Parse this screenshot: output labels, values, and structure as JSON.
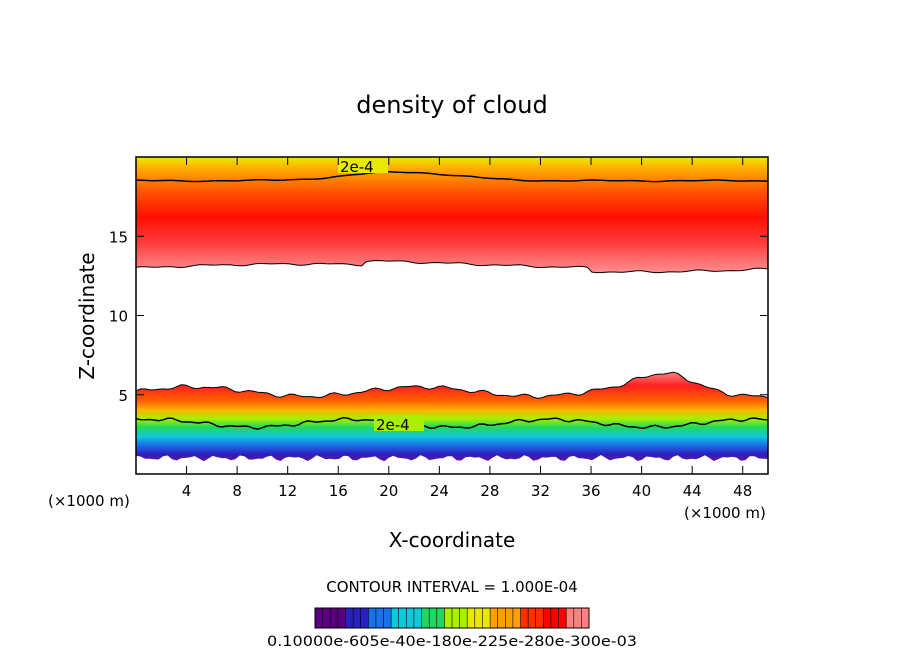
{
  "chart_data": {
    "type": "heatmap",
    "title": "density of cloud",
    "xlabel": "X-coordinate",
    "ylabel": "Z-coordinate",
    "x_units": "(×1000 m)",
    "y_units": "(×1000 m)",
    "xlim": [
      0,
      50
    ],
    "ylim": [
      0,
      20
    ],
    "x_ticks": [
      "4",
      "8",
      "12",
      "16",
      "20",
      "24",
      "28",
      "32",
      "36",
      "40",
      "44",
      "48"
    ],
    "x_tick_values": [
      4,
      8,
      12,
      16,
      20,
      24,
      28,
      32,
      36,
      40,
      44,
      48
    ],
    "y_ticks": [
      "5",
      "10",
      "15"
    ],
    "y_tick_values": [
      5,
      10,
      15
    ],
    "contour_label": "2e-4",
    "contour_label_value": 0.0002,
    "contour_interval_text": "CONTOUR INTERVAL = 1.000E-04",
    "contour_interval": 0.0001,
    "colorbar_labels_text": "0.10000e-605e-40e-180e-225e-280e-300e-03",
    "upper_layer": {
      "z_bottom": 13.2,
      "z_peak": 15.0,
      "z_contour": 18.5,
      "z_top": 20.0
    },
    "lower_layer": {
      "z_bottom": 1.0,
      "z_peak": 4.6,
      "z_contour": 3.2,
      "z_top": 5.2
    },
    "colors": [
      "#5a0080",
      "#2a20c0",
      "#1a70e8",
      "#10c8d8",
      "#20d860",
      "#a8f000",
      "#e8e800",
      "#ffa000",
      "#ff3000",
      "#ff0000",
      "#ff8080"
    ]
  }
}
